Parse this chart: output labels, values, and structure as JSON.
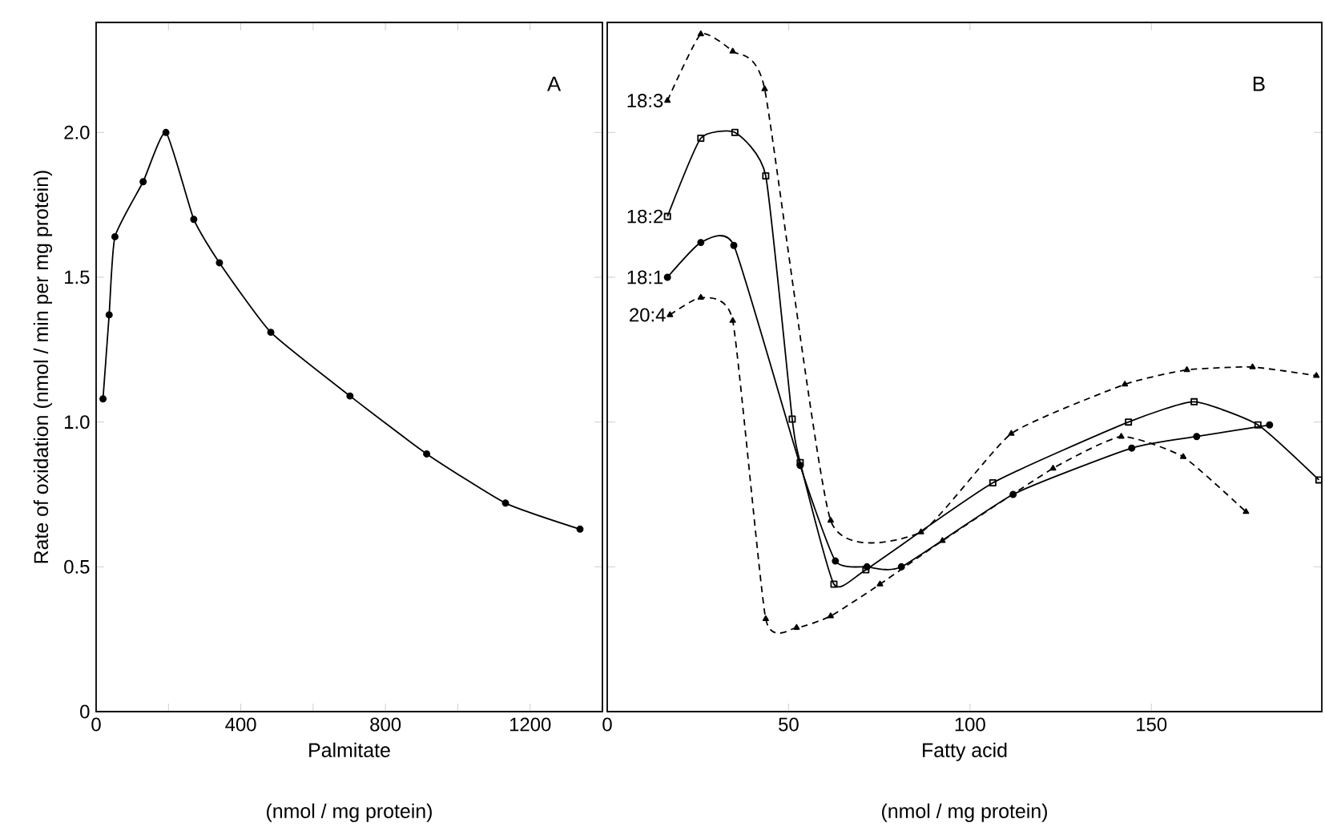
{
  "chart_data": [
    {
      "type": "line",
      "xlabel": "Palmitate",
      "ylabel": "Rate of oxidation (nmol / min per mg protein)",
      "annotations": [
        "A",
        "(nmol / mg protein)"
      ],
      "xlim": [
        0,
        1400
      ],
      "ylim": [
        0,
        2.38
      ],
      "xticks": [
        0,
        {
          "value": 200,
          "label": null
        },
        400,
        {
          "value": 600,
          "label": null
        },
        800,
        {
          "value": 1000,
          "label": null
        },
        1200
      ],
      "yticks": [
        0,
        0.5,
        {
          "value": 1,
          "label": "1.0"
        },
        {
          "value": 1.5,
          "label": "1.5"
        },
        {
          "value": 2,
          "label": "2.0"
        }
      ],
      "marker": "circle",
      "line_style": "solid",
      "series": [
        {
          "color": "#000000",
          "x": [
            19,
            36,
            52,
            130,
            193,
            270,
            341,
            483,
            702,
            914,
            1132,
            1338
          ],
          "values": [
            1.08,
            1.37,
            1.64,
            1.83,
            2.0,
            1.7,
            1.55,
            1.31,
            1.09,
            0.89,
            0.72,
            0.63
          ]
        }
      ]
    },
    {
      "type": "line",
      "xlabel": "Fatty acid",
      "annotations": [
        "B",
        "(nmol / mg protein)"
      ],
      "xlim": [
        0,
        197
      ],
      "ylim": [
        0,
        2.38
      ],
      "xticks": [
        0,
        50,
        100,
        150
      ],
      "yticks": [
        0,
        0.5,
        1,
        1.5,
        2
      ],
      "tick_labels": "x",
      "series": [
        {
          "name": "18:3",
          "color": "#000000",
          "marker": "triangle",
          "line_style": "dashed",
          "x": [
            16.6,
            25.8,
            34.6,
            43.4,
            61.6,
            86.5,
            111.4,
            142.7,
            159.8,
            177.9,
            195.5
          ],
          "values": [
            2.11,
            2.34,
            2.28,
            2.15,
            0.66,
            0.62,
            0.96,
            1.13,
            1.18,
            1.19,
            1.16
          ]
        },
        {
          "name": "18:2",
          "color": "#000000",
          "marker": "square",
          "line_style": "solid",
          "x": [
            16.6,
            25.8,
            35.2,
            43.7,
            51,
            53.2,
            62.5,
            71.3,
            106.3,
            143.7,
            161.8,
            179.4,
            196.2
          ],
          "values": [
            1.71,
            1.98,
            2.0,
            1.85,
            1.01,
            0.86,
            0.44,
            0.49,
            0.79,
            1.0,
            1.07,
            0.99,
            0.8
          ]
        },
        {
          "name": "18:1",
          "color": "#000000",
          "marker": "circle",
          "line_style": "solid",
          "x": [
            16.6,
            25.8,
            34.9,
            53.2,
            62.9,
            71.6,
            81.1,
            111.9,
            144.6,
            162.5,
            182.6
          ],
          "values": [
            1.5,
            1.62,
            1.61,
            0.85,
            0.52,
            0.5,
            0.5,
            0.75,
            0.91,
            0.95,
            0.99
          ]
        },
        {
          "name": "20:4",
          "color": "#000000",
          "marker": "triangle",
          "line_style": "dashed",
          "x": [
            17.3,
            25.8,
            34.6,
            43.7,
            52.2,
            61.6,
            75.2,
            92.4,
            122.9,
            141.7,
            158.8,
            176.1
          ],
          "values": [
            1.37,
            1.43,
            1.35,
            0.32,
            0.29,
            0.33,
            0.44,
            0.59,
            0.84,
            0.95,
            0.88,
            0.69
          ]
        }
      ]
    }
  ]
}
